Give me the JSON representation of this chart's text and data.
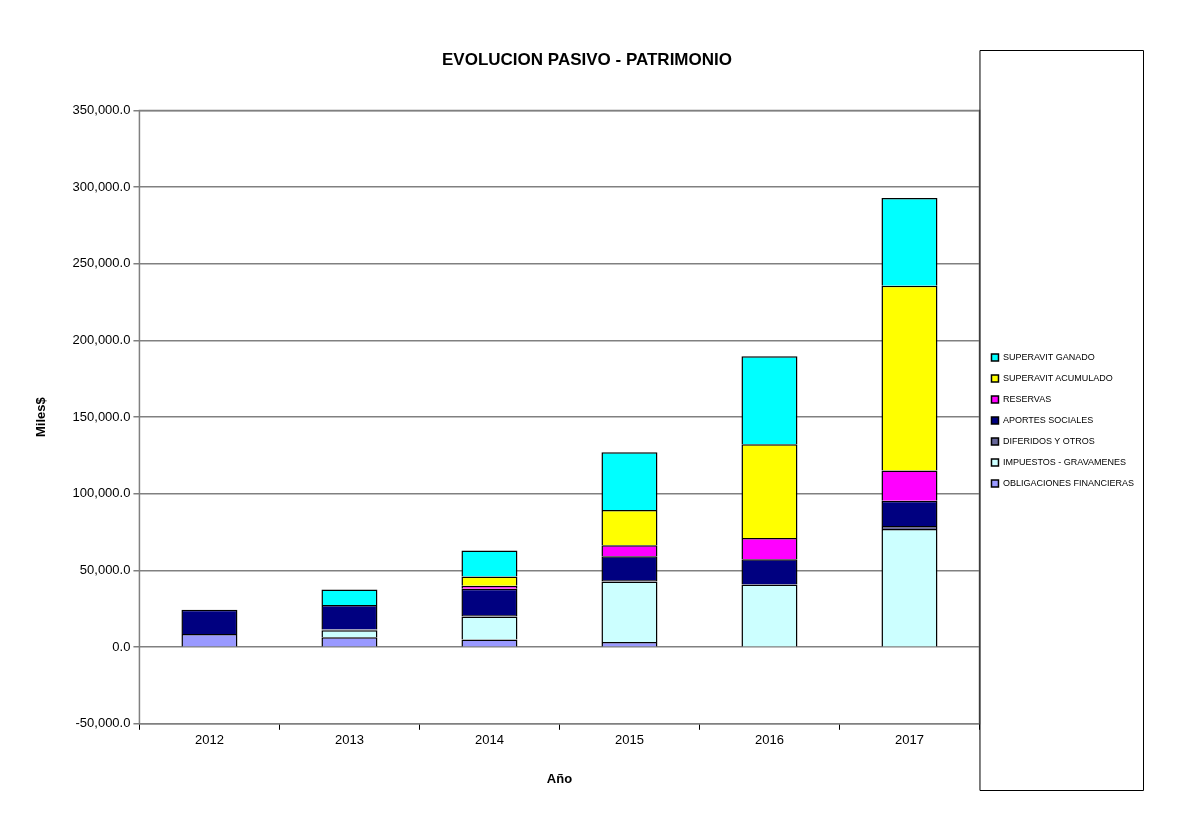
{
  "chart_data": {
    "type": "bar",
    "title": "EVOLUCION PASIVO - PATRIMONIO",
    "xlabel": "Año",
    "ylabel": "Miles$",
    "categories": [
      "2012",
      "2013",
      "2014",
      "2015",
      "2016",
      "2017"
    ],
    "stacked": true,
    "series": [
      {
        "name": "OBLIGACIONES FINANCIERAS",
        "color": "#9999ff",
        "values": [
          8500,
          6500,
          5000,
          3300,
          0,
          0
        ]
      },
      {
        "name": "IMPUESTOS - GRAVAMENES",
        "color": "#ccffff",
        "values": [
          0,
          4500,
          15000,
          39500,
          40800,
          77000
        ]
      },
      {
        "name": "DIFERIDOS Y OTROS",
        "color": "#666699",
        "values": [
          0,
          500,
          1000,
          1000,
          0,
          2000
        ]
      },
      {
        "name": "APORTES SOCIALES",
        "color": "#000080",
        "values": [
          15800,
          16000,
          17000,
          15500,
          16500,
          16500
        ]
      },
      {
        "name": "RESERVAS",
        "color": "#ff00ff",
        "values": [
          0,
          0,
          2000,
          7200,
          13800,
          19700
        ]
      },
      {
        "name": "SUPERAVIT ACUMULADO",
        "color": "#ffff00",
        "values": [
          0,
          0,
          6000,
          23000,
          61200,
          120400
        ]
      },
      {
        "name": "SUPERAVIT GANADO",
        "color": "#00ffff",
        "values": [
          0,
          10000,
          17000,
          37500,
          57300,
          57300
        ]
      }
    ],
    "ylim": [
      -50000,
      350000
    ],
    "yticks": [
      {
        "value": -50000,
        "label": "-50,000.0"
      },
      {
        "value": 0,
        "label": "0.0"
      },
      {
        "value": 50000,
        "label": "50,000.0"
      },
      {
        "value": 100000,
        "label": "100,000.0"
      },
      {
        "value": 150000,
        "label": "150,000.0"
      },
      {
        "value": 200000,
        "label": "200,000.0"
      },
      {
        "value": 250000,
        "label": "250,000.0"
      },
      {
        "value": 300000,
        "label": "300,000.0"
      },
      {
        "value": 350000,
        "label": "350,000.0"
      }
    ],
    "grid": "y",
    "legend": "right"
  }
}
